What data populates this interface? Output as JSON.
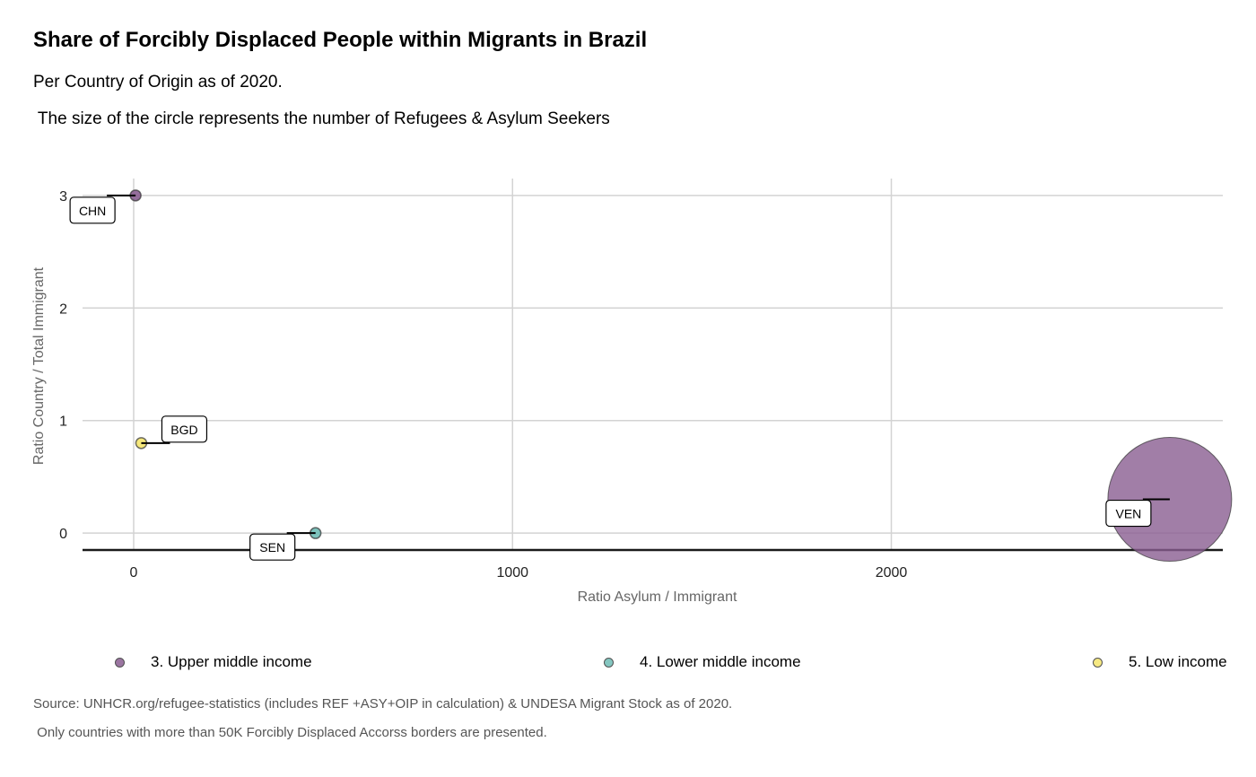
{
  "header": {
    "title": "Share of Forcibly Displaced People within Migrants in Brazil",
    "subtitle": "Per Country of Origin as of 2020.",
    "subtitle2": " The size of the circle represents the number of Refugees & Asylum Seekers"
  },
  "footer": {
    "caption": "Source: UNHCR.org/refugee-statistics (includes REF +ASY+OIP in calculation) & UNDESA Migrant Stock as of 2020.",
    "caption2": " Only countries with more than 50K Forcibly Displaced Accorss borders are presented."
  },
  "legend": {
    "items": [
      {
        "label": "3. Upper middle income",
        "color": "#8a5e91"
      },
      {
        "label": "4. Lower middle income",
        "color": "#6fbdb6"
      },
      {
        "label": "5. Low income",
        "color": "#f5e66e"
      }
    ]
  },
  "chart_data": {
    "type": "scatter",
    "title": "Share of Forcibly Displaced People within Migrants in Brazil",
    "subtitle": "Per Country of Origin as of 2020.",
    "xlabel": "Ratio Asylum / Immigrant",
    "ylabel": "Ratio Country / Total Immigrant",
    "xticks": [
      0,
      1000,
      2000
    ],
    "yticks": [
      0,
      1,
      2,
      3
    ],
    "xlim": [
      -135,
      2875
    ],
    "ylim": [
      -0.15,
      3.15
    ],
    "grid": true,
    "legend_position": "bottom",
    "points": [
      {
        "label": "CHN",
        "x": 5,
        "y": 3.0,
        "group": "3. Upper middle income",
        "color": "#8a5e91",
        "size": "small"
      },
      {
        "label": "BGD",
        "x": 20,
        "y": 0.8,
        "group": "5. Low income",
        "color": "#f5e66e",
        "size": "small"
      },
      {
        "label": "SEN",
        "x": 480,
        "y": 0.0,
        "group": "4. Lower middle income",
        "color": "#6fbdb6",
        "size": "small"
      },
      {
        "label": "VEN",
        "x": 2735,
        "y": 0.3,
        "group": "3. Upper middle income",
        "color": "#8a5e91",
        "size": "large"
      }
    ]
  }
}
